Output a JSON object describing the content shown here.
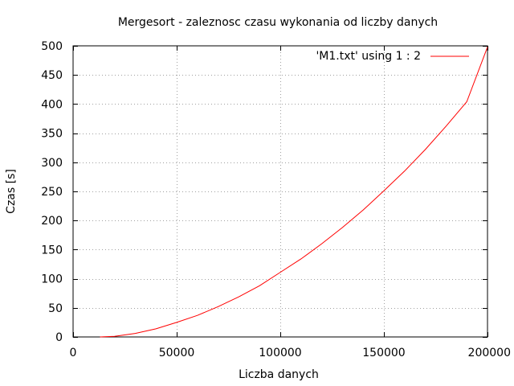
{
  "chart_data": {
    "type": "line",
    "title": "Mergesort - zaleznosc czasu wykonania od liczby danych",
    "xlabel": "Liczba danych",
    "ylabel": "Czas [s]",
    "xlim": [
      0,
      200000
    ],
    "ylim": [
      0,
      500
    ],
    "x_ticks": [
      0,
      50000,
      100000,
      150000,
      200000
    ],
    "y_ticks": [
      0,
      50,
      100,
      150,
      200,
      250,
      300,
      350,
      400,
      450,
      500
    ],
    "grid": true,
    "legend_position": "top-right",
    "series": [
      {
        "name": "'M1.txt' using 1 : 2",
        "color": "#ff0000",
        "x": [
          13000,
          20000,
          30000,
          40000,
          50000,
          60000,
          70000,
          80000,
          90000,
          100000,
          110000,
          120000,
          130000,
          140000,
          150000,
          160000,
          170000,
          180000,
          190000,
          200000
        ],
        "y": [
          0,
          1,
          6,
          14,
          25,
          37,
          52,
          69,
          88,
          111,
          134,
          160,
          188,
          218,
          251,
          285,
          322,
          362,
          404,
          498
        ]
      }
    ]
  }
}
